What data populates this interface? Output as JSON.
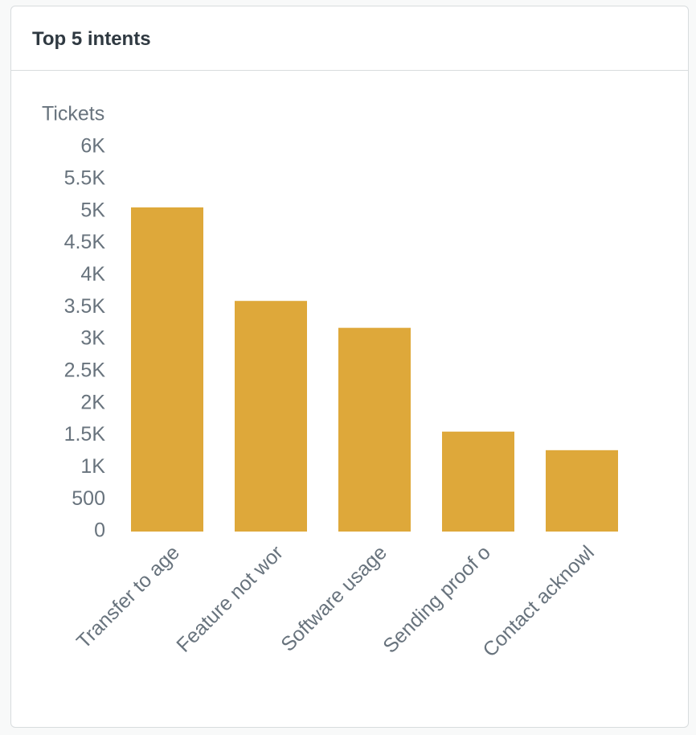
{
  "chart_data": {
    "type": "bar",
    "title": "Top 5 intents",
    "y_label": "Tickets",
    "categories": [
      "Transfer to age",
      "Feature not wor",
      "Software usage",
      "Sending proof o",
      "Contact acknowl"
    ],
    "values": [
      5060,
      3600,
      3180,
      1560,
      1270
    ],
    "color": "#dea83a",
    "ylim": [
      0,
      6000
    ],
    "yticks": [
      0,
      500,
      {
        "value": 1000,
        "label": "1K"
      },
      {
        "value": 1500,
        "label": "1.5K"
      },
      {
        "value": 2000,
        "label": "2K"
      },
      {
        "value": 2500,
        "label": "2.5K"
      },
      {
        "value": 3000,
        "label": "3K"
      },
      {
        "value": 3500,
        "label": "3.5K"
      },
      {
        "value": 4000,
        "label": "4K"
      },
      {
        "value": 4500,
        "label": "4.5K"
      },
      {
        "value": 5000,
        "label": "5K"
      },
      {
        "value": 5500,
        "label": "5.5K"
      },
      {
        "value": 6000,
        "label": "6K"
      }
    ],
    "grid": false
  }
}
